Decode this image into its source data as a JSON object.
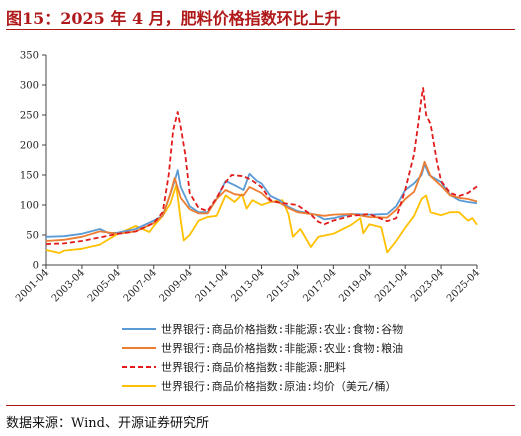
{
  "header": {
    "title": "图15：2025 年 4 月，肥料价格指数环比上升"
  },
  "footer": {
    "source": "数据来源：Wind、开源证券研究所"
  },
  "chart_data": {
    "type": "line",
    "title": "",
    "xlabel": "",
    "ylabel": "",
    "ylim": [
      0,
      350
    ],
    "yticks": [
      0,
      50,
      100,
      150,
      200,
      250,
      300,
      350
    ],
    "xlim": [
      "2001-04",
      "2025-04"
    ],
    "xticks": [
      "2001-04",
      "2003-04",
      "2005-04",
      "2007-04",
      "2009-04",
      "2011-04",
      "2013-04",
      "2015-04",
      "2017-04",
      "2019-04",
      "2021-04",
      "2023-04",
      "2025-04"
    ],
    "grid": false,
    "legend_position": "bottom",
    "series": [
      {
        "name": "世界银行:商品价格指数:非能源:农业:食物:谷物",
        "color": "#5b9bd5",
        "style": "solid",
        "points": [
          [
            "2001-04",
            47
          ],
          [
            "2002-04",
            48
          ],
          [
            "2003-04",
            52
          ],
          [
            "2004-04",
            60
          ],
          [
            "2004-10",
            53
          ],
          [
            "2005-04",
            54
          ],
          [
            "2006-04",
            60
          ],
          [
            "2007-04",
            74
          ],
          [
            "2007-10",
            82
          ],
          [
            "2008-01",
            103
          ],
          [
            "2008-04",
            125
          ],
          [
            "2008-06",
            140
          ],
          [
            "2008-08",
            158
          ],
          [
            "2008-10",
            130
          ],
          [
            "2009-04",
            98
          ],
          [
            "2009-10",
            88
          ],
          [
            "2010-04",
            88
          ],
          [
            "2010-10",
            110
          ],
          [
            "2011-04",
            140
          ],
          [
            "2011-10",
            133
          ],
          [
            "2012-04",
            125
          ],
          [
            "2012-08",
            152
          ],
          [
            "2013-01",
            140
          ],
          [
            "2013-04",
            136
          ],
          [
            "2013-10",
            115
          ],
          [
            "2014-04",
            108
          ],
          [
            "2014-10",
            97
          ],
          [
            "2015-04",
            90
          ],
          [
            "2016-04",
            84
          ],
          [
            "2016-10",
            76
          ],
          [
            "2017-04",
            78
          ],
          [
            "2018-04",
            85
          ],
          [
            "2019-04",
            84
          ],
          [
            "2020-04",
            85
          ],
          [
            "2020-10",
            98
          ],
          [
            "2021-04",
            125
          ],
          [
            "2021-10",
            136
          ],
          [
            "2022-03",
            150
          ],
          [
            "2022-05",
            168
          ],
          [
            "2022-08",
            150
          ],
          [
            "2023-04",
            138
          ],
          [
            "2023-10",
            117
          ],
          [
            "2024-04",
            108
          ],
          [
            "2024-10",
            105
          ],
          [
            "2025-04",
            103
          ]
        ]
      },
      {
        "name": "世界银行:商品价格指数:非能源:农业:食物:粮油",
        "color": "#ed7d31",
        "style": "solid",
        "points": [
          [
            "2001-04",
            40
          ],
          [
            "2002-04",
            42
          ],
          [
            "2003-04",
            47
          ],
          [
            "2004-04",
            56
          ],
          [
            "2005-04",
            52
          ],
          [
            "2006-04",
            56
          ],
          [
            "2007-04",
            70
          ],
          [
            "2007-10",
            82
          ],
          [
            "2008-03",
            118
          ],
          [
            "2008-06",
            145
          ],
          [
            "2008-10",
            112
          ],
          [
            "2009-04",
            93
          ],
          [
            "2009-10",
            86
          ],
          [
            "2010-04",
            86
          ],
          [
            "2010-10",
            110
          ],
          [
            "2011-04",
            125
          ],
          [
            "2011-10",
            118
          ],
          [
            "2012-04",
            116
          ],
          [
            "2012-08",
            130
          ],
          [
            "2013-04",
            120
          ],
          [
            "2013-10",
            106
          ],
          [
            "2014-04",
            104
          ],
          [
            "2014-10",
            95
          ],
          [
            "2015-04",
            88
          ],
          [
            "2016-04",
            84
          ],
          [
            "2016-10",
            82
          ],
          [
            "2017-04",
            84
          ],
          [
            "2018-04",
            85
          ],
          [
            "2019-04",
            80
          ],
          [
            "2020-04",
            79
          ],
          [
            "2020-10",
            92
          ],
          [
            "2021-04",
            110
          ],
          [
            "2021-10",
            122
          ],
          [
            "2022-03",
            155
          ],
          [
            "2022-05",
            172
          ],
          [
            "2022-09",
            148
          ],
          [
            "2023-04",
            132
          ],
          [
            "2023-10",
            116
          ],
          [
            "2024-04",
            112
          ],
          [
            "2024-10",
            110
          ],
          [
            "2025-04",
            106
          ]
        ]
      },
      {
        "name": "世界银行:商品价格指数:非能源:肥料",
        "color": "#e21b1b",
        "style": "dashed",
        "points": [
          [
            "2001-04",
            35
          ],
          [
            "2002-04",
            36
          ],
          [
            "2003-04",
            40
          ],
          [
            "2004-04",
            46
          ],
          [
            "2005-04",
            52
          ],
          [
            "2006-04",
            56
          ],
          [
            "2007-04",
            70
          ],
          [
            "2007-10",
            88
          ],
          [
            "2008-02",
            150
          ],
          [
            "2008-05",
            225
          ],
          [
            "2008-08",
            255
          ],
          [
            "2008-10",
            230
          ],
          [
            "2009-01",
            185
          ],
          [
            "2009-04",
            120
          ],
          [
            "2009-10",
            95
          ],
          [
            "2010-04",
            90
          ],
          [
            "2010-10",
            112
          ],
          [
            "2011-04",
            138
          ],
          [
            "2011-08",
            150
          ],
          [
            "2012-04",
            148
          ],
          [
            "2012-09",
            142
          ],
          [
            "2013-04",
            130
          ],
          [
            "2013-10",
            108
          ],
          [
            "2014-04",
            104
          ],
          [
            "2014-10",
            102
          ],
          [
            "2015-04",
            100
          ],
          [
            "2016-01",
            84
          ],
          [
            "2016-06",
            72
          ],
          [
            "2016-10",
            68
          ],
          [
            "2017-04",
            74
          ],
          [
            "2018-04",
            82
          ],
          [
            "2019-04",
            85
          ],
          [
            "2020-04",
            73
          ],
          [
            "2020-10",
            78
          ],
          [
            "2021-04",
            125
          ],
          [
            "2021-10",
            185
          ],
          [
            "2022-01",
            240
          ],
          [
            "2022-03",
            280
          ],
          [
            "2022-04",
            295
          ],
          [
            "2022-06",
            250
          ],
          [
            "2022-09",
            235
          ],
          [
            "2023-01",
            175
          ],
          [
            "2023-04",
            140
          ],
          [
            "2023-10",
            120
          ],
          [
            "2024-04",
            115
          ],
          [
            "2024-10",
            120
          ],
          [
            "2025-04",
            131
          ]
        ]
      },
      {
        "name": "世界银行:商品价格指数:原油:均价（美元/桶）",
        "color": "#ffc000",
        "style": "solid",
        "points": [
          [
            "2001-04",
            25
          ],
          [
            "2002-01",
            20
          ],
          [
            "2002-04",
            24
          ],
          [
            "2003-04",
            27
          ],
          [
            "2004-04",
            34
          ],
          [
            "2005-04",
            52
          ],
          [
            "2006-04",
            65
          ],
          [
            "2007-01",
            55
          ],
          [
            "2007-04",
            65
          ],
          [
            "2007-10",
            82
          ],
          [
            "2008-03",
            102
          ],
          [
            "2008-07",
            133
          ],
          [
            "2008-10",
            75
          ],
          [
            "2008-12",
            41
          ],
          [
            "2009-04",
            50
          ],
          [
            "2009-10",
            74
          ],
          [
            "2010-04",
            80
          ],
          [
            "2010-10",
            82
          ],
          [
            "2011-04",
            116
          ],
          [
            "2011-10",
            105
          ],
          [
            "2012-03",
            118
          ],
          [
            "2012-06",
            94
          ],
          [
            "2012-10",
            108
          ],
          [
            "2013-04",
            100
          ],
          [
            "2013-10",
            105
          ],
          [
            "2014-06",
            108
          ],
          [
            "2014-10",
            85
          ],
          [
            "2015-01",
            47
          ],
          [
            "2015-06",
            60
          ],
          [
            "2016-01",
            30
          ],
          [
            "2016-06",
            47
          ],
          [
            "2017-04",
            52
          ],
          [
            "2018-04",
            67
          ],
          [
            "2018-10",
            78
          ],
          [
            "2018-12",
            53
          ],
          [
            "2019-04",
            68
          ],
          [
            "2019-12",
            63
          ],
          [
            "2020-04",
            21
          ],
          [
            "2020-10",
            40
          ],
          [
            "2021-04",
            62
          ],
          [
            "2021-10",
            82
          ],
          [
            "2022-03",
            110
          ],
          [
            "2022-06",
            116
          ],
          [
            "2022-09",
            88
          ],
          [
            "2023-04",
            83
          ],
          [
            "2023-10",
            88
          ],
          [
            "2024-04",
            88
          ],
          [
            "2024-10",
            74
          ],
          [
            "2025-01",
            78
          ],
          [
            "2025-04",
            67
          ]
        ]
      }
    ]
  }
}
